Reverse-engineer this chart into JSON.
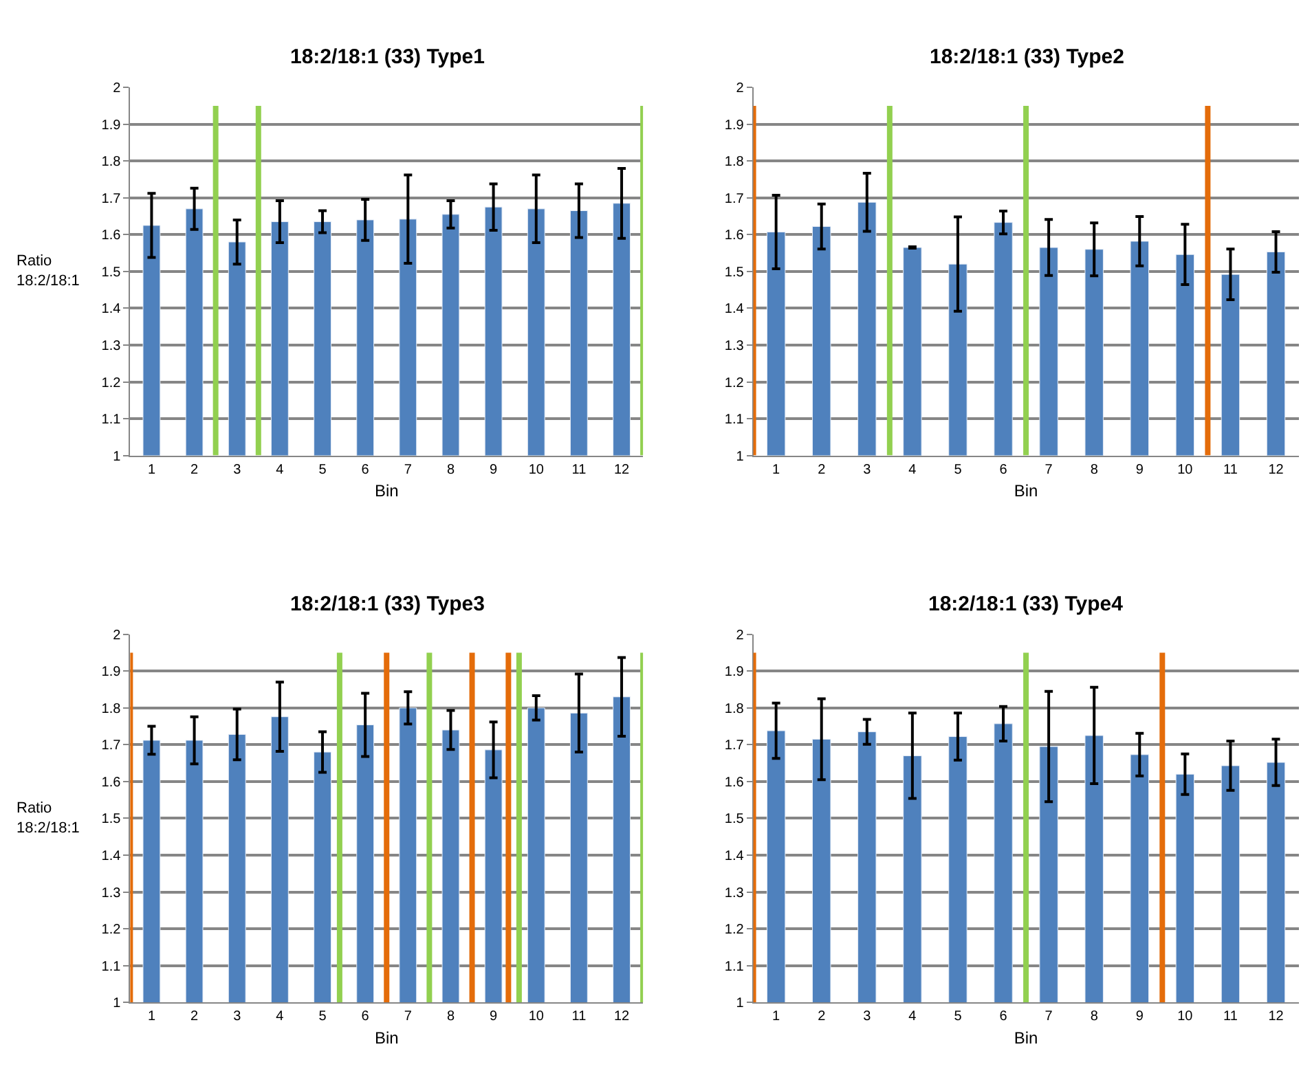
{
  "chart_data": [
    {
      "type": "bar",
      "title": "18:2/18:1 (33) Type1",
      "xlabel": "Bin",
      "ylabel": "Ratio\n18:2/18:1",
      "x": [
        1,
        2,
        3,
        4,
        5,
        6,
        7,
        8,
        9,
        10,
        11,
        12
      ],
      "xlim": [
        0.5,
        12.5
      ],
      "xticks": [
        1,
        2,
        3,
        4,
        5,
        6,
        7,
        8,
        9,
        10,
        11,
        12
      ],
      "ylim": [
        1,
        2
      ],
      "yticks": [
        1,
        1.1,
        1.2,
        1.3,
        1.4,
        1.5,
        1.6,
        1.7,
        1.8,
        1.9,
        2
      ],
      "grid": "y",
      "series": [
        {
          "color": "#4f81bd",
          "values": [
            1.625,
            1.67,
            1.58,
            1.635,
            1.635,
            1.64,
            1.642,
            1.655,
            1.675,
            1.67,
            1.665,
            1.685
          ],
          "errors": [
            0.087,
            0.056,
            0.06,
            0.057,
            0.03,
            0.056,
            0.12,
            0.037,
            0.063,
            0.092,
            0.073,
            0.095
          ]
        }
      ],
      "ref_lines": [
        {
          "axis": "x",
          "value": 2.5,
          "color": "#92d050"
        },
        {
          "axis": "x",
          "value": 3.5,
          "color": "#92d050"
        },
        {
          "axis": "x",
          "value": 12.5,
          "color": "#92d050"
        }
      ]
    },
    {
      "type": "bar",
      "title": "18:2/18:1 (33) Type2",
      "xlabel": "Bin",
      "x": [
        1,
        2,
        3,
        4,
        5,
        6,
        7,
        8,
        9,
        10,
        11,
        12
      ],
      "xlim": [
        0.5,
        12.5
      ],
      "xticks": [
        1,
        2,
        3,
        4,
        5,
        6,
        7,
        8,
        9,
        10,
        11,
        12
      ],
      "ylim": [
        1,
        2
      ],
      "yticks": [
        1,
        1.1,
        1.2,
        1.3,
        1.4,
        1.5,
        1.6,
        1.7,
        1.8,
        1.9,
        2
      ],
      "grid": "y",
      "series": [
        {
          "color": "#4f81bd",
          "values": [
            1.607,
            1.622,
            1.688,
            1.565,
            1.52,
            1.633,
            1.565,
            1.56,
            1.582,
            1.546,
            1.492,
            1.553
          ],
          "errors": [
            0.1,
            0.061,
            0.079,
            0.002,
            0.128,
            0.031,
            0.076,
            0.072,
            0.067,
            0.082,
            0.069,
            0.055
          ]
        }
      ],
      "ref_lines": [
        {
          "axis": "x",
          "value": 0.5,
          "color": "#e46c0a"
        },
        {
          "axis": "x",
          "value": 3.5,
          "color": "#92d050"
        },
        {
          "axis": "x",
          "value": 6.5,
          "color": "#92d050"
        },
        {
          "axis": "x",
          "value": 10.5,
          "color": "#e46c0a"
        }
      ]
    },
    {
      "type": "bar",
      "title": "18:2/18:1 (33) Type3",
      "xlabel": "Bin",
      "ylabel": "Ratio\n18:2/18:1",
      "x": [
        1,
        2,
        3,
        4,
        5,
        6,
        7,
        8,
        9,
        10,
        11,
        12
      ],
      "xlim": [
        0.5,
        12.5
      ],
      "xticks": [
        1,
        2,
        3,
        4,
        5,
        6,
        7,
        8,
        9,
        10,
        11,
        12
      ],
      "ylim": [
        1,
        2
      ],
      "yticks": [
        1,
        1.1,
        1.2,
        1.3,
        1.4,
        1.5,
        1.6,
        1.7,
        1.8,
        1.9,
        2
      ],
      "grid": "y",
      "series": [
        {
          "color": "#4f81bd",
          "values": [
            1.712,
            1.712,
            1.728,
            1.776,
            1.68,
            1.754,
            1.8,
            1.74,
            1.686,
            1.8,
            1.786,
            1.83
          ],
          "errors": [
            0.038,
            0.064,
            0.069,
            0.094,
            0.055,
            0.086,
            0.044,
            0.053,
            0.076,
            0.033,
            0.106,
            0.107
          ]
        }
      ],
      "ref_lines": [
        {
          "axis": "x",
          "value": 0.5,
          "color": "#e46c0a"
        },
        {
          "axis": "x",
          "value": 5.4,
          "color": "#92d050"
        },
        {
          "axis": "x",
          "value": 6.5,
          "color": "#e46c0a"
        },
        {
          "axis": "x",
          "value": 7.5,
          "color": "#92d050"
        },
        {
          "axis": "x",
          "value": 8.5,
          "color": "#e46c0a"
        },
        {
          "axis": "x",
          "value": 9.35,
          "color": "#e46c0a"
        },
        {
          "axis": "x",
          "value": 9.6,
          "color": "#92d050"
        },
        {
          "axis": "x",
          "value": 12.5,
          "color": "#92d050"
        }
      ]
    },
    {
      "type": "bar",
      "title": "18:2/18:1 (33) Type4",
      "xlabel": "Bin",
      "x": [
        1,
        2,
        3,
        4,
        5,
        6,
        7,
        8,
        9,
        10,
        11,
        12
      ],
      "xlim": [
        0.5,
        12.5
      ],
      "xticks": [
        1,
        2,
        3,
        4,
        5,
        6,
        7,
        8,
        9,
        10,
        11,
        12
      ],
      "ylim": [
        1,
        2
      ],
      "yticks": [
        1,
        1.1,
        1.2,
        1.3,
        1.4,
        1.5,
        1.6,
        1.7,
        1.8,
        1.9,
        2
      ],
      "grid": "y",
      "series": [
        {
          "color": "#4f81bd",
          "values": [
            1.738,
            1.715,
            1.735,
            1.67,
            1.722,
            1.757,
            1.695,
            1.725,
            1.673,
            1.62,
            1.643,
            1.652
          ],
          "errors": [
            0.075,
            0.11,
            0.034,
            0.116,
            0.064,
            0.047,
            0.15,
            0.131,
            0.058,
            0.055,
            0.067,
            0.063
          ]
        }
      ],
      "ref_lines": [
        {
          "axis": "x",
          "value": 0.5,
          "color": "#e46c0a"
        },
        {
          "axis": "x",
          "value": 6.5,
          "color": "#92d050"
        },
        {
          "axis": "x",
          "value": 9.5,
          "color": "#e46c0a"
        }
      ]
    }
  ]
}
